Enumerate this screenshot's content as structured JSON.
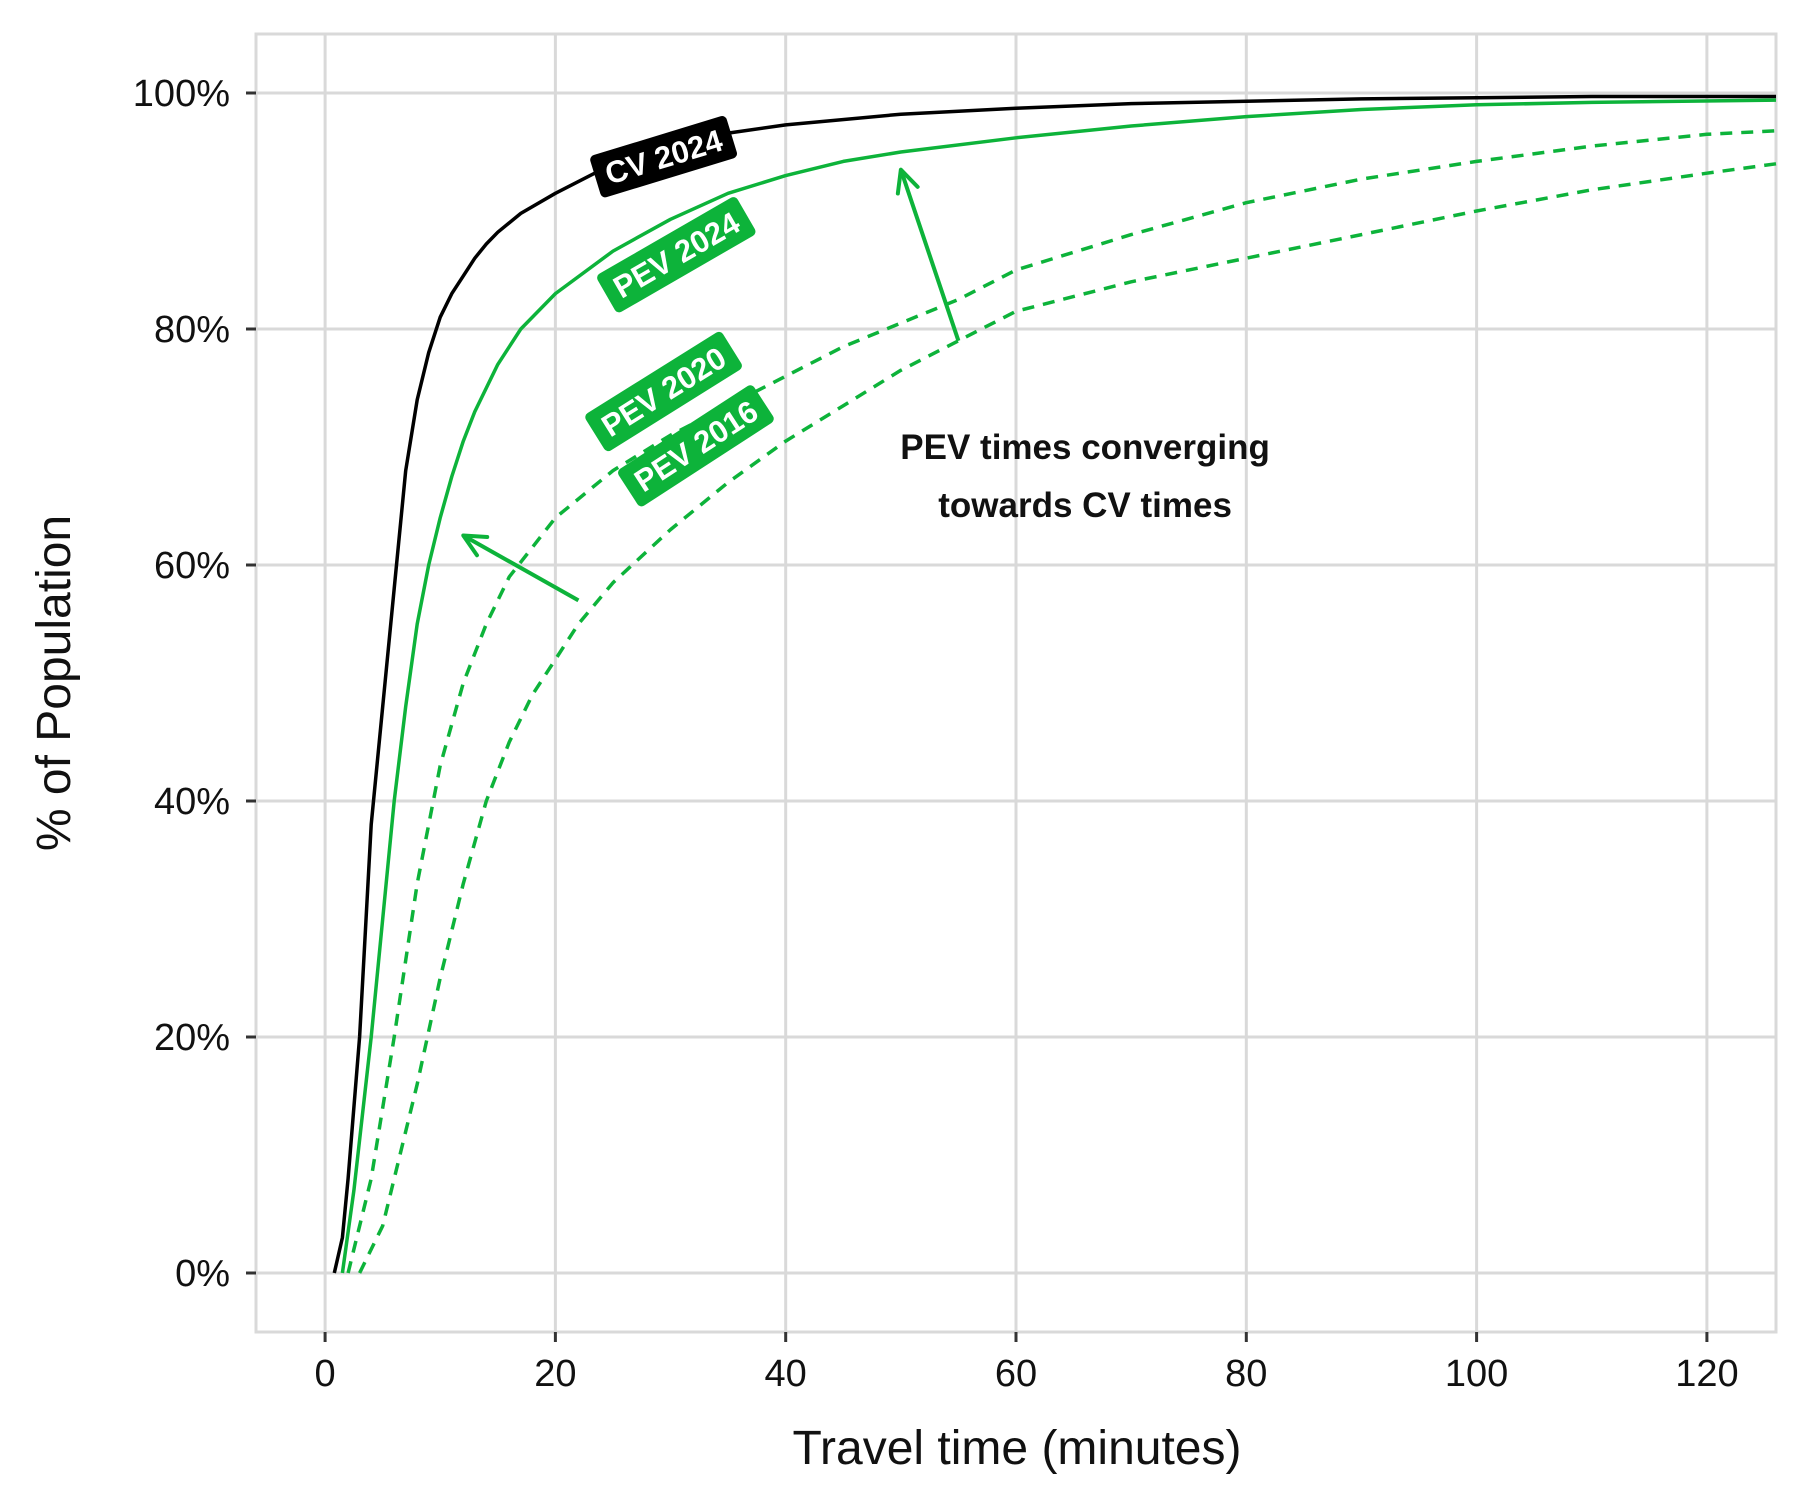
{
  "chart_data": {
    "type": "line",
    "title": "",
    "xlabel": "Travel time (minutes)",
    "ylabel": "% of Population",
    "xlim": [
      -6,
      126
    ],
    "ylim": [
      -5,
      105
    ],
    "x_ticks": [
      0,
      20,
      40,
      60,
      80,
      100,
      120
    ],
    "y_ticks": [
      0,
      20,
      40,
      60,
      80,
      100
    ],
    "y_tick_labels": [
      "0%",
      "20%",
      "40%",
      "60%",
      "80%",
      "100%"
    ],
    "grid": true,
    "legend": "none",
    "colors": {
      "cv": "#000000",
      "pev": "#0db33a",
      "grid": "#d9d9d9"
    },
    "series": [
      {
        "name": "CV 2024",
        "style": "solid",
        "color": "#000000",
        "x": [
          0.8,
          1.5,
          2,
          3,
          4,
          5,
          6,
          7,
          8,
          9,
          10,
          11,
          12,
          13,
          14,
          15,
          17,
          20,
          25,
          30,
          35,
          40,
          50,
          60,
          70,
          80,
          90,
          100,
          110,
          126
        ],
        "y": [
          0,
          3,
          8,
          20,
          38,
          48,
          58,
          68,
          74,
          78,
          81,
          83,
          84.5,
          86,
          87.2,
          88.2,
          89.8,
          91.5,
          94,
          95.5,
          96.6,
          97.3,
          98.2,
          98.7,
          99.1,
          99.3,
          99.5,
          99.6,
          99.7,
          99.7
        ]
      },
      {
        "name": "PEV 2024",
        "style": "solid",
        "color": "#0db33a",
        "x": [
          1.5,
          2.5,
          4,
          5,
          6,
          7,
          8,
          9,
          10,
          11,
          12,
          13,
          14,
          15,
          17,
          20,
          25,
          30,
          35,
          40,
          45,
          50,
          60,
          70,
          80,
          90,
          100,
          110,
          126
        ],
        "y": [
          0,
          7,
          20,
          30,
          40,
          48,
          55,
          60,
          64,
          67.5,
          70.5,
          73,
          75,
          77,
          80,
          83,
          86.6,
          89.3,
          91.5,
          93,
          94.2,
          95,
          96.2,
          97.2,
          98,
          98.6,
          99,
          99.2,
          99.4
        ]
      },
      {
        "name": "PEV 2020",
        "style": "dashed",
        "color": "#0db33a",
        "x": [
          2,
          4,
          6,
          8,
          10,
          12,
          14,
          16,
          18,
          20,
          25,
          30,
          35,
          40,
          45,
          50,
          55,
          60,
          70,
          80,
          90,
          100,
          110,
          120,
          126
        ],
        "y": [
          0,
          8,
          20,
          33,
          43,
          50,
          55,
          59,
          61.5,
          64,
          68,
          71,
          73.5,
          76,
          78.5,
          80.5,
          82.5,
          85,
          88,
          90.7,
          92.7,
          94.2,
          95.5,
          96.5,
          96.8
        ]
      },
      {
        "name": "PEV 2016",
        "style": "dashed",
        "color": "#0db33a",
        "x": [
          3,
          5,
          8,
          10,
          12,
          14,
          16,
          18,
          20,
          22,
          25,
          30,
          35,
          40,
          45,
          50,
          55,
          60,
          70,
          80,
          90,
          100,
          110,
          120,
          126
        ],
        "y": [
          0,
          4,
          16,
          25,
          33,
          40,
          45,
          49,
          52,
          55,
          58.5,
          63,
          67,
          70.5,
          73.5,
          76.5,
          79,
          81.5,
          84,
          86,
          88,
          90,
          91.8,
          93.2,
          94
        ]
      }
    ],
    "series_labels": [
      {
        "text": "CV 2024",
        "x": 29.4,
        "y": 94.6,
        "angle": -17,
        "bg": "#000000"
      },
      {
        "text": "PEV 2024",
        "x": 30.5,
        "y": 86.3,
        "angle": -30,
        "bg": "#0db33a"
      },
      {
        "text": "PEV 2020",
        "x": 29.4,
        "y": 74.7,
        "angle": -32,
        "bg": "#0db33a"
      },
      {
        "text": "PEV 2016",
        "x": 32.2,
        "y": 70.1,
        "angle": -33,
        "bg": "#0db33a"
      }
    ],
    "annotation": {
      "lines": [
        "PEV times converging",
        "towards CV times"
      ],
      "x": 66,
      "y": 69
    },
    "arrows": [
      {
        "from": [
          22,
          57
        ],
        "to": [
          12,
          62.5
        ]
      },
      {
        "from": [
          55,
          79
        ],
        "to": [
          50,
          93.5
        ]
      }
    ]
  }
}
